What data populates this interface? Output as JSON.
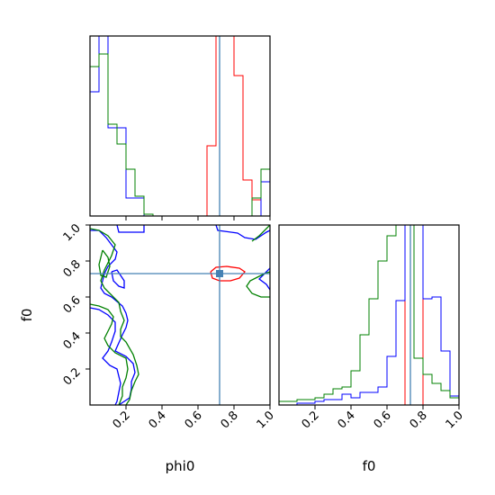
{
  "chart_data": {
    "type": "corner",
    "parameters": [
      "phi0",
      "f0"
    ],
    "truth": {
      "phi0": 0.72,
      "f0": 0.73
    },
    "colors": {
      "red": "#ff0000",
      "blue": "#0000ff",
      "green": "#008000",
      "truth": "#4682b4"
    },
    "axes": {
      "phi0": {
        "xlabel": "phi0",
        "xlim": [
          0,
          1
        ],
        "ticks": [
          0.2,
          0.4,
          0.6,
          0.8,
          1.0
        ],
        "tick_labels": [
          "0.2",
          "0.4",
          "0.6",
          "0.8",
          "1.0"
        ]
      },
      "f0": {
        "xlabel": "f0",
        "xlim": [
          0,
          1
        ],
        "ticks": [
          0.2,
          0.4,
          0.6,
          0.8,
          1.0
        ],
        "tick_labels": [
          "0.2",
          "0.4",
          "0.6",
          "0.8",
          "1.0"
        ]
      },
      "joint": {
        "ylabel": "f0",
        "ylim": [
          0,
          1
        ],
        "yticks": [
          0.2,
          0.4,
          0.6,
          0.8,
          1.0
        ],
        "ytick_labels": [
          "0.2",
          "0.4",
          "0.6",
          "0.8",
          "1.0"
        ]
      }
    },
    "hist_phi0": {
      "bin_edges": [
        0,
        0.05,
        0.1,
        0.15,
        0.2,
        0.25,
        0.3,
        0.35,
        0.4,
        0.45,
        0.5,
        0.55,
        0.6,
        0.65,
        0.7,
        0.75,
        0.8,
        0.85,
        0.9,
        0.95,
        1.0
      ],
      "series": [
        {
          "color": "red",
          "values": [
            0,
            0,
            0,
            0,
            0,
            0,
            0,
            0,
            0,
            0,
            0,
            0,
            0,
            0.39,
            1.1,
            1.1,
            0.78,
            0.2,
            0.09,
            0,
            0
          ]
        },
        {
          "color": "blue",
          "values": [
            0.69,
            1.1,
            0.49,
            0.49,
            0.1,
            0.1,
            0,
            0,
            0,
            0,
            0,
            0,
            0,
            0,
            0,
            0,
            0,
            0,
            0,
            0.19,
            0.48
          ]
        },
        {
          "color": "green",
          "values": [
            0.83,
            0.9,
            0.51,
            0.4,
            0.26,
            0.11,
            0.01,
            0,
            0,
            0,
            0,
            0,
            0,
            0,
            0,
            0,
            0,
            0,
            0.1,
            0.26,
            0.48
          ]
        }
      ]
    },
    "hist_f0": {
      "bin_edges": [
        0,
        0.05,
        0.1,
        0.15,
        0.2,
        0.25,
        0.3,
        0.35,
        0.4,
        0.45,
        0.5,
        0.55,
        0.6,
        0.65,
        0.7,
        0.75,
        0.8,
        0.85,
        0.9,
        0.95,
        1.0
      ],
      "series": [
        {
          "color": "red",
          "values": [
            0,
            0,
            0,
            0,
            0,
            0,
            0,
            0,
            0,
            0,
            0,
            0,
            0,
            0,
            1.2,
            1.2,
            0,
            0,
            0,
            0,
            0
          ]
        },
        {
          "color": "blue",
          "values": [
            0,
            0,
            0.01,
            0.01,
            0.02,
            0.03,
            0.03,
            0.06,
            0.04,
            0.07,
            0.07,
            0.1,
            0.27,
            0.58,
            1.2,
            1.2,
            0.59,
            0.6,
            0.3,
            0.05,
            0
          ]
        },
        {
          "color": "green",
          "values": [
            0.02,
            0.02,
            0.03,
            0.03,
            0.04,
            0.06,
            0.09,
            0.1,
            0.19,
            0.39,
            0.59,
            0.8,
            0.94,
            1.0,
            1.2,
            0.26,
            0.17,
            0.12,
            0.08,
            0.04,
            0.03
          ]
        }
      ]
    },
    "contours": [
      {
        "color": "red",
        "points": [
          [
            0.67,
            0.74
          ],
          [
            0.7,
            0.765
          ],
          [
            0.76,
            0.77
          ],
          [
            0.83,
            0.76
          ],
          [
            0.86,
            0.74
          ],
          [
            0.83,
            0.705
          ],
          [
            0.78,
            0.69
          ],
          [
            0.72,
            0.69
          ],
          [
            0.68,
            0.705
          ],
          [
            0.67,
            0.74
          ]
        ]
      },
      {
        "color": "blue",
        "points": [
          [
            0.15,
            1.0
          ],
          [
            0.16,
            0.96
          ],
          [
            0.3,
            0.96
          ],
          [
            0.3,
            1.0
          ]
        ]
      },
      {
        "color": "blue",
        "points": [
          [
            0.7,
            1.0
          ],
          [
            0.71,
            0.97
          ],
          [
            0.82,
            0.955
          ],
          [
            0.86,
            0.93
          ],
          [
            0.92,
            0.92
          ],
          [
            0.98,
            0.96
          ],
          [
            1.0,
            0.97
          ]
        ]
      },
      {
        "color": "blue",
        "points": [
          [
            0,
            0.97
          ],
          [
            0.05,
            0.97
          ],
          [
            0.09,
            0.93
          ],
          [
            0.12,
            0.89
          ],
          [
            0.15,
            0.85
          ],
          [
            0.14,
            0.81
          ],
          [
            0.1,
            0.77
          ],
          [
            0.08,
            0.73
          ],
          [
            0.07,
            0.69
          ],
          [
            0.06,
            0.65
          ],
          [
            0.08,
            0.62
          ],
          [
            0.12,
            0.6
          ],
          [
            0.18,
            0.55
          ],
          [
            0.2,
            0.51
          ],
          [
            0.21,
            0.47
          ],
          [
            0.2,
            0.43
          ],
          [
            0.18,
            0.39
          ],
          [
            0.14,
            0.3
          ],
          [
            0.2,
            0.27
          ],
          [
            0.24,
            0.23
          ],
          [
            0.25,
            0.18
          ],
          [
            0.23,
            0.13
          ],
          [
            0.23,
            0.09
          ],
          [
            0.22,
            0.04
          ],
          [
            0.16,
            0.0
          ]
        ]
      },
      {
        "color": "blue",
        "points": [
          [
            0,
            0.54
          ],
          [
            0.05,
            0.53
          ],
          [
            0.1,
            0.5
          ],
          [
            0.14,
            0.46
          ],
          [
            0.14,
            0.41
          ],
          [
            0.12,
            0.35
          ],
          [
            0.1,
            0.3
          ],
          [
            0.07,
            0.26
          ],
          [
            0.11,
            0.22
          ],
          [
            0.15,
            0.2
          ],
          [
            0.16,
            0.16
          ],
          [
            0.17,
            0.12
          ],
          [
            0.16,
            0.07
          ],
          [
            0.15,
            0.02
          ],
          [
            0.14,
            0.0
          ]
        ]
      },
      {
        "color": "blue",
        "points": [
          [
            0.12,
            0.74
          ],
          [
            0.13,
            0.69
          ],
          [
            0.16,
            0.66
          ],
          [
            0.19,
            0.65
          ],
          [
            0.19,
            0.69
          ],
          [
            0.17,
            0.72
          ],
          [
            0.15,
            0.75
          ],
          [
            0.12,
            0.74
          ]
        ]
      },
      {
        "color": "blue",
        "points": [
          [
            1.0,
            0.64
          ],
          [
            0.98,
            0.67
          ],
          [
            0.94,
            0.7
          ],
          [
            0.97,
            0.73
          ],
          [
            1.0,
            0.76
          ]
        ]
      },
      {
        "color": "green",
        "points": [
          [
            0,
            0.98
          ],
          [
            0.05,
            0.97
          ],
          [
            0.1,
            0.94
          ],
          [
            0.14,
            0.89
          ],
          [
            0.12,
            0.83
          ],
          [
            0.1,
            0.79
          ],
          [
            0.08,
            0.75
          ],
          [
            0.06,
            0.69
          ],
          [
            0.08,
            0.65
          ],
          [
            0.12,
            0.61
          ],
          [
            0.16,
            0.57
          ],
          [
            0.17,
            0.52
          ],
          [
            0.19,
            0.47
          ],
          [
            0.17,
            0.42
          ],
          [
            0.17,
            0.38
          ],
          [
            0.2,
            0.35
          ],
          [
            0.24,
            0.28
          ],
          [
            0.26,
            0.22
          ],
          [
            0.27,
            0.17
          ],
          [
            0.25,
            0.13
          ],
          [
            0.23,
            0.08
          ],
          [
            0.22,
            0.03
          ],
          [
            0.2,
            0.0
          ]
        ]
      },
      {
        "color": "green",
        "points": [
          [
            0,
            0.56
          ],
          [
            0.05,
            0.55
          ],
          [
            0.1,
            0.53
          ],
          [
            0.13,
            0.49
          ],
          [
            0.12,
            0.45
          ],
          [
            0.1,
            0.41
          ],
          [
            0.08,
            0.37
          ],
          [
            0.1,
            0.33
          ],
          [
            0.14,
            0.29
          ],
          [
            0.2,
            0.26
          ],
          [
            0.21,
            0.2
          ],
          [
            0.2,
            0.15
          ],
          [
            0.18,
            0.1
          ],
          [
            0.18,
            0.05
          ],
          [
            0.16,
            0.0
          ]
        ]
      },
      {
        "color": "green",
        "points": [
          [
            0.07,
            0.86
          ],
          [
            0.1,
            0.82
          ],
          [
            0.11,
            0.77
          ],
          [
            0.09,
            0.71
          ],
          [
            0.06,
            0.72
          ],
          [
            0.05,
            0.78
          ],
          [
            0.07,
            0.86
          ]
        ]
      },
      {
        "color": "green",
        "points": [
          [
            1.0,
            0.6
          ],
          [
            0.95,
            0.6
          ],
          [
            0.9,
            0.62
          ],
          [
            0.87,
            0.66
          ],
          [
            0.89,
            0.69
          ],
          [
            0.93,
            0.71
          ],
          [
            0.97,
            0.73
          ],
          [
            1.0,
            0.74
          ]
        ]
      },
      {
        "color": "green",
        "points": [
          [
            0.9,
            0.91
          ],
          [
            0.94,
            0.94
          ],
          [
            0.98,
            0.98
          ],
          [
            1.0,
            1.0
          ]
        ]
      }
    ]
  }
}
